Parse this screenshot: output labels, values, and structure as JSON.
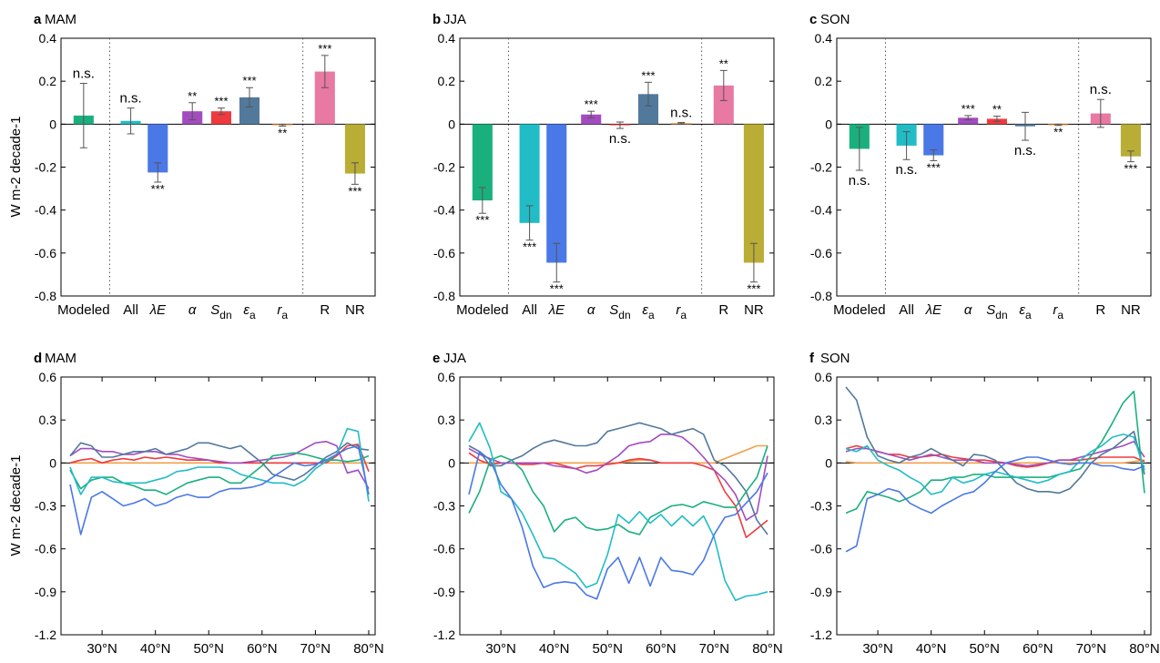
{
  "y_unit_label": "W m-2 decade-1",
  "colors": {
    "modeled": "#1ab07e",
    "all": "#22bcc6",
    "lambdaE": "#4a78e6",
    "alpha": "#a24cc0",
    "sdn": "#ee3a3e",
    "epsa": "#52799b",
    "ra": "#f0a04a",
    "R": "#e879a1",
    "NR": "#b9ad36",
    "err": "#555555",
    "sig": "#666666"
  },
  "chart_data": [
    {
      "type": "bar",
      "panel": "a",
      "title": "MAM",
      "categories": [
        "Modeled",
        "All",
        "λE",
        "α",
        "Sdn",
        "εa",
        "ra",
        "R",
        "NR"
      ],
      "values": [
        0.04,
        0.015,
        -0.225,
        0.06,
        0.06,
        0.125,
        -0.005,
        0.245,
        -0.23
      ],
      "errors": [
        0.15,
        0.06,
        0.045,
        0.04,
        0.015,
        0.045,
        0.004,
        0.075,
        0.05
      ],
      "significance": [
        "n.s.",
        "n.s.",
        "***",
        "**",
        "***",
        "***",
        "**",
        "***",
        "***"
      ],
      "ylim": [
        -0.8,
        0.4
      ],
      "yticks": [
        "0.4",
        "0.2",
        "0",
        "-0.2",
        "-0.4",
        "-0.6",
        "-0.8"
      ]
    },
    {
      "type": "bar",
      "panel": "b",
      "title": "JJA",
      "categories": [
        "Modeled",
        "All",
        "λE",
        "α",
        "Sdn",
        "εa",
        "ra",
        "R",
        "NR"
      ],
      "values": [
        -0.355,
        -0.46,
        -0.645,
        0.045,
        -0.005,
        0.14,
        0.005,
        0.18,
        -0.645
      ],
      "errors": [
        0.06,
        0.08,
        0.09,
        0.015,
        0.015,
        0.055,
        0.003,
        0.07,
        0.09
      ],
      "significance": [
        "***",
        "***",
        "***",
        "***",
        "n.s.",
        "***",
        "n.s.",
        "**",
        "***"
      ],
      "ylim": [
        -0.8,
        0.4
      ],
      "yticks": [
        "0.4",
        "0.2",
        "0",
        "-0.2",
        "-0.4",
        "-0.6",
        "-0.8"
      ]
    },
    {
      "type": "bar",
      "panel": "c",
      "title": "SON",
      "categories": [
        "Modeled",
        "All",
        "λE",
        "α",
        "Sdn",
        "εa",
        "ra",
        "R",
        "NR"
      ],
      "values": [
        -0.115,
        -0.1,
        -0.145,
        0.03,
        0.025,
        -0.01,
        -0.003,
        0.05,
        -0.15
      ],
      "errors": [
        0.1,
        0.065,
        0.025,
        0.01,
        0.012,
        0.065,
        0.003,
        0.065,
        0.025
      ],
      "significance": [
        "n.s.",
        "n.s.",
        "***",
        "***",
        "**",
        "n.s.",
        "**",
        "n.s.",
        "***"
      ],
      "ylim": [
        -0.8,
        0.4
      ],
      "yticks": [
        "0.4",
        "0.2",
        "0",
        "-0.2",
        "-0.4",
        "-0.6",
        "-0.8"
      ]
    },
    {
      "type": "line",
      "panel": "d",
      "title": "MAM",
      "x": [
        24,
        26,
        28,
        30,
        32,
        34,
        36,
        38,
        40,
        42,
        44,
        46,
        48,
        50,
        52,
        54,
        56,
        58,
        60,
        62,
        64,
        66,
        68,
        70,
        72,
        74,
        76,
        78,
        80
      ],
      "ylim": [
        -1.2,
        0.6
      ],
      "yticks": [
        "0.6",
        "0.3",
        "0",
        "-0.3",
        "-0.6",
        "-0.9",
        "-1.2"
      ],
      "xticks": [
        "30°N",
        "40°N",
        "50°N",
        "60°N",
        "70°N",
        "80°N"
      ],
      "series": [
        {
          "key": "modeled",
          "values": [
            -0.05,
            -0.18,
            -0.12,
            -0.1,
            -0.1,
            -0.14,
            -0.16,
            -0.19,
            -0.19,
            -0.22,
            -0.18,
            -0.14,
            -0.12,
            -0.1,
            -0.1,
            -0.14,
            -0.14,
            -0.08,
            -0.02,
            0.05,
            0.06,
            0.07,
            0.06,
            0.04,
            0.02,
            0.02,
            0.01,
            0.02,
            0.05
          ]
        },
        {
          "key": "all",
          "values": [
            -0.03,
            -0.22,
            -0.1,
            -0.1,
            -0.13,
            -0.14,
            -0.14,
            -0.14,
            -0.12,
            -0.1,
            -0.06,
            -0.05,
            -0.03,
            -0.03,
            -0.03,
            -0.04,
            -0.08,
            -0.1,
            -0.12,
            -0.14,
            -0.14,
            -0.16,
            -0.12,
            -0.04,
            0.01,
            0.06,
            0.24,
            0.22,
            -0.27
          ]
        },
        {
          "key": "lambdaE",
          "values": [
            -0.15,
            -0.5,
            -0.24,
            -0.2,
            -0.25,
            -0.3,
            -0.28,
            -0.25,
            -0.3,
            -0.28,
            -0.24,
            -0.22,
            -0.24,
            -0.24,
            -0.2,
            -0.18,
            -0.18,
            -0.17,
            -0.15,
            -0.1,
            -0.05,
            0.0,
            -0.02,
            -0.01,
            0.02,
            0.06,
            0.1,
            0.12,
            -0.22
          ]
        },
        {
          "key": "alpha",
          "values": [
            0.05,
            0.1,
            0.1,
            0.08,
            0.08,
            0.06,
            0.06,
            0.08,
            0.08,
            0.06,
            0.06,
            0.04,
            0.03,
            0.02,
            0.01,
            0.0,
            0.0,
            0.01,
            0.02,
            0.03,
            0.04,
            0.06,
            0.1,
            0.14,
            0.15,
            0.12,
            -0.07,
            -0.05,
            -0.18
          ]
        },
        {
          "key": "sdn",
          "values": [
            0.0,
            0.02,
            0.03,
            0.0,
            0.02,
            0.03,
            0.02,
            0.04,
            0.03,
            0.04,
            0.03,
            0.02,
            0.02,
            0.02,
            0.0,
            0.0,
            0.0,
            0.0,
            0.0,
            0.0,
            0.0,
            0.0,
            0.0,
            0.0,
            0.0,
            0.05,
            0.12,
            0.13,
            -0.06
          ]
        },
        {
          "key": "epsa",
          "values": [
            0.05,
            0.14,
            0.12,
            0.04,
            0.04,
            0.06,
            0.08,
            0.08,
            0.1,
            0.06,
            0.08,
            0.1,
            0.14,
            0.14,
            0.12,
            0.1,
            0.12,
            0.06,
            0.0,
            -0.08,
            -0.1,
            -0.12,
            -0.08,
            -0.02,
            0.04,
            0.08,
            0.14,
            0.1,
            0.09
          ]
        },
        {
          "key": "ra",
          "values": [
            0.0,
            0.0,
            0.0,
            0.0,
            0.0,
            0.0,
            0.0,
            0.0,
            0.0,
            0.0,
            0.0,
            0.0,
            0.0,
            0.0,
            0.0,
            0.0,
            0.0,
            0.0,
            0.0,
            0.0,
            0.0,
            0.0,
            0.0,
            0.0,
            0.0,
            0.0,
            0.0,
            0.0,
            0.0
          ]
        }
      ]
    },
    {
      "type": "line",
      "panel": "e",
      "title": "JJA",
      "x": [
        24,
        26,
        28,
        30,
        32,
        34,
        36,
        38,
        40,
        42,
        44,
        46,
        48,
        50,
        52,
        54,
        56,
        58,
        60,
        62,
        64,
        66,
        68,
        70,
        72,
        74,
        76,
        78,
        80
      ],
      "ylim": [
        -1.2,
        0.6
      ],
      "yticks": [
        "0.6",
        "0.3",
        "0",
        "-0.3",
        "-0.6",
        "-0.9",
        "-1.2"
      ],
      "xticks": [
        "30°N",
        "40°N",
        "50°N",
        "60°N",
        "70°N",
        "80°N"
      ],
      "series": [
        {
          "key": "modeled",
          "values": [
            -0.35,
            -0.2,
            0.02,
            0.05,
            0.02,
            -0.05,
            -0.2,
            -0.3,
            -0.48,
            -0.4,
            -0.38,
            -0.45,
            -0.47,
            -0.46,
            -0.43,
            -0.48,
            -0.5,
            -0.38,
            -0.34,
            -0.3,
            -0.29,
            -0.31,
            -0.27,
            -0.29,
            -0.31,
            -0.31,
            -0.2,
            -0.1,
            0.12
          ]
        },
        {
          "key": "all",
          "values": [
            0.15,
            0.28,
            0.1,
            -0.2,
            -0.25,
            -0.35,
            -0.5,
            -0.66,
            -0.67,
            -0.72,
            -0.77,
            -0.87,
            -0.84,
            -0.64,
            -0.36,
            -0.42,
            -0.34,
            -0.42,
            -0.36,
            -0.44,
            -0.37,
            -0.44,
            -0.37,
            -0.52,
            -0.82,
            -0.96,
            -0.93,
            -0.92,
            -0.9
          ]
        },
        {
          "key": "lambdaE",
          "values": [
            -0.22,
            0.08,
            0.02,
            -0.15,
            -0.25,
            -0.45,
            -0.72,
            -0.87,
            -0.84,
            -0.83,
            -0.84,
            -0.92,
            -0.95,
            -0.74,
            -0.66,
            -0.84,
            -0.66,
            -0.86,
            -0.66,
            -0.75,
            -0.76,
            -0.78,
            -0.68,
            -0.5,
            -0.38,
            -0.36,
            -0.28,
            -0.2,
            -0.07
          ]
        },
        {
          "key": "alpha",
          "values": [
            0.1,
            0.06,
            0.03,
            0.0,
            0.0,
            0.0,
            0.0,
            0.0,
            -0.02,
            -0.03,
            -0.04,
            -0.07,
            -0.05,
            0.0,
            0.05,
            0.12,
            0.14,
            0.15,
            0.2,
            0.2,
            0.18,
            0.12,
            0.04,
            -0.05,
            -0.12,
            -0.22,
            -0.4,
            -0.35,
            0.05
          ]
        },
        {
          "key": "sdn",
          "values": [
            0.07,
            0.02,
            -0.01,
            0.0,
            0.0,
            -0.01,
            -0.01,
            0.0,
            0.0,
            -0.02,
            -0.04,
            -0.02,
            -0.02,
            -0.01,
            0.0,
            0.02,
            0.03,
            0.02,
            0.0,
            0.0,
            0.0,
            0.0,
            -0.02,
            -0.05,
            -0.2,
            -0.3,
            -0.52,
            -0.46,
            -0.4
          ]
        },
        {
          "key": "epsa",
          "values": [
            0.12,
            0.08,
            -0.02,
            -0.02,
            0.02,
            0.05,
            0.1,
            0.14,
            0.16,
            0.14,
            0.12,
            0.12,
            0.14,
            0.22,
            0.24,
            0.26,
            0.28,
            0.26,
            0.24,
            0.2,
            0.22,
            0.24,
            0.2,
            0.02,
            -0.02,
            -0.1,
            -0.2,
            -0.4,
            -0.5
          ]
        },
        {
          "key": "ra",
          "values": [
            0.0,
            0.0,
            0.0,
            0.0,
            0.0,
            0.0,
            0.0,
            0.0,
            0.0,
            0.0,
            0.0,
            0.0,
            0.0,
            0.0,
            0.0,
            0.01,
            0.02,
            0.02,
            0.0,
            0.0,
            0.0,
            0.0,
            0.0,
            0.0,
            0.03,
            0.06,
            0.09,
            0.12,
            0.12
          ]
        }
      ]
    },
    {
      "type": "line",
      "panel": "f",
      "title": "SON",
      "x": [
        24,
        26,
        28,
        30,
        32,
        34,
        36,
        38,
        40,
        42,
        44,
        46,
        48,
        50,
        52,
        54,
        56,
        58,
        60,
        62,
        64,
        66,
        68,
        70,
        72,
        74,
        76,
        78,
        80
      ],
      "ylim": [
        -1.2,
        0.6
      ],
      "yticks": [
        "0.6",
        "0.3",
        "0",
        "-0.3",
        "-0.6",
        "-0.9",
        "-1.2"
      ],
      "xticks": [
        "30°N",
        "40°N",
        "50°N",
        "60°N",
        "70°N",
        "80°N"
      ],
      "series": [
        {
          "key": "modeled",
          "values": [
            -0.35,
            -0.32,
            -0.2,
            -0.22,
            -0.24,
            -0.27,
            -0.24,
            -0.2,
            -0.12,
            -0.12,
            -0.1,
            -0.1,
            -0.08,
            -0.08,
            -0.1,
            -0.1,
            -0.1,
            -0.1,
            -0.1,
            -0.1,
            -0.08,
            -0.06,
            -0.04,
            0.05,
            0.15,
            0.28,
            0.42,
            0.5,
            -0.21
          ]
        },
        {
          "key": "all",
          "values": [
            0.1,
            0.08,
            0.12,
            0.02,
            -0.02,
            -0.05,
            -0.1,
            -0.14,
            -0.22,
            -0.2,
            -0.1,
            -0.14,
            -0.12,
            -0.08,
            -0.06,
            -0.08,
            -0.1,
            -0.12,
            -0.14,
            -0.12,
            -0.08,
            -0.06,
            0.02,
            0.08,
            0.12,
            0.18,
            0.2,
            0.18,
            -0.05
          ]
        },
        {
          "key": "lambdaE",
          "values": [
            -0.62,
            -0.58,
            -0.25,
            -0.22,
            -0.18,
            -0.2,
            -0.28,
            -0.32,
            -0.35,
            -0.3,
            -0.26,
            -0.22,
            -0.2,
            -0.14,
            -0.06,
            0.0,
            0.02,
            0.04,
            0.04,
            0.02,
            0.0,
            -0.01,
            0.0,
            0.0,
            -0.02,
            -0.02,
            -0.04,
            -0.05,
            -0.02
          ]
        },
        {
          "key": "alpha",
          "values": [
            0.08,
            0.1,
            0.1,
            0.08,
            0.06,
            0.04,
            0.02,
            0.04,
            0.06,
            0.04,
            0.02,
            0.02,
            0.02,
            0.0,
            0.0,
            0.0,
            -0.01,
            -0.02,
            -0.01,
            0.0,
            0.02,
            0.02,
            0.04,
            0.06,
            0.08,
            0.1,
            0.12,
            0.15,
            0.04
          ]
        },
        {
          "key": "sdn",
          "values": [
            0.1,
            0.12,
            0.1,
            0.08,
            0.06,
            0.06,
            0.04,
            0.04,
            0.05,
            0.06,
            0.04,
            0.03,
            0.02,
            0.02,
            0.01,
            0.0,
            -0.02,
            -0.03,
            -0.02,
            0.0,
            0.02,
            0.02,
            0.02,
            0.03,
            0.04,
            0.04,
            0.04,
            0.04,
            0.01
          ]
        },
        {
          "key": "epsa",
          "values": [
            0.53,
            0.44,
            0.18,
            0.05,
            0.02,
            0.0,
            0.04,
            0.06,
            0.1,
            0.06,
            0.02,
            -0.02,
            0.06,
            0.05,
            0.02,
            -0.06,
            -0.14,
            -0.18,
            -0.2,
            -0.2,
            -0.21,
            -0.18,
            -0.1,
            0.0,
            0.06,
            0.1,
            0.16,
            0.22,
            -0.08
          ]
        },
        {
          "key": "ra",
          "values": [
            0.01,
            0.0,
            0.0,
            0.0,
            0.0,
            0.0,
            0.0,
            0.0,
            0.0,
            0.0,
            0.0,
            0.0,
            0.0,
            0.0,
            0.0,
            0.0,
            0.0,
            0.0,
            0.0,
            0.0,
            0.0,
            0.0,
            0.0,
            0.0,
            0.0,
            0.0,
            0.0,
            0.01,
            0.02
          ]
        }
      ]
    }
  ]
}
